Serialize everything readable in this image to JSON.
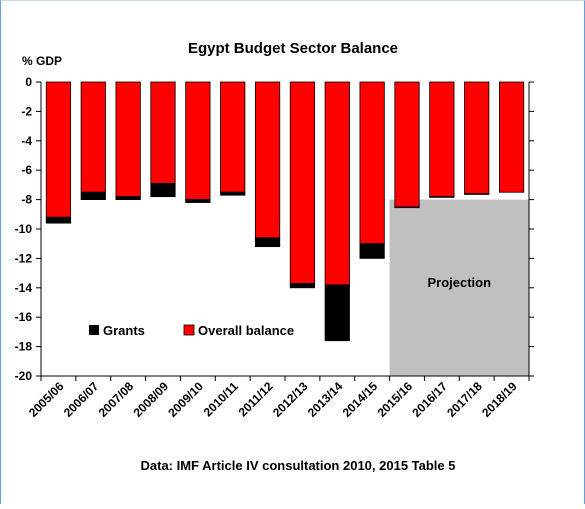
{
  "chart_data": {
    "type": "bar",
    "stacked": true,
    "title": "Egypt Budget Sector Balance",
    "ylabel": "% GDP",
    "xlabel": "",
    "source": "Data: IMF Article IV consultation 2010, 2015  Table 5",
    "ylim": [
      -20,
      0
    ],
    "yticks": [
      0,
      -2,
      -4,
      -6,
      -8,
      -10,
      -12,
      -14,
      -16,
      -18,
      -20
    ],
    "categories": [
      "2005/06",
      "2006/07",
      "2007/08",
      "2008/09",
      "2009/10",
      "2010/11",
      "2011/12",
      "2012/13",
      "2013/14",
      "2014/15",
      "2015/16",
      "2016/17",
      "2017/18",
      "2018/19"
    ],
    "series": [
      {
        "name": "Overall balance",
        "color": "#ff0000",
        "values": [
          -9.2,
          -7.5,
          -7.8,
          -6.9,
          -8.0,
          -7.5,
          -10.6,
          -13.7,
          -13.8,
          -11.0,
          -8.5,
          -7.8,
          -7.6,
          -7.5
        ]
      },
      {
        "name": "Grants",
        "color": "#000000",
        "values": [
          -0.4,
          -0.5,
          -0.2,
          -0.9,
          -0.2,
          -0.2,
          -0.6,
          -0.3,
          -3.8,
          -1.0,
          -0.05,
          -0.05,
          -0.05,
          0
        ]
      }
    ],
    "legend_position": "bottom-left",
    "shaded_region": {
      "label": "Projection",
      "from_category": "2015/16",
      "to_category": "2018/19",
      "color": "#c0c0c0"
    },
    "grid": false
  }
}
